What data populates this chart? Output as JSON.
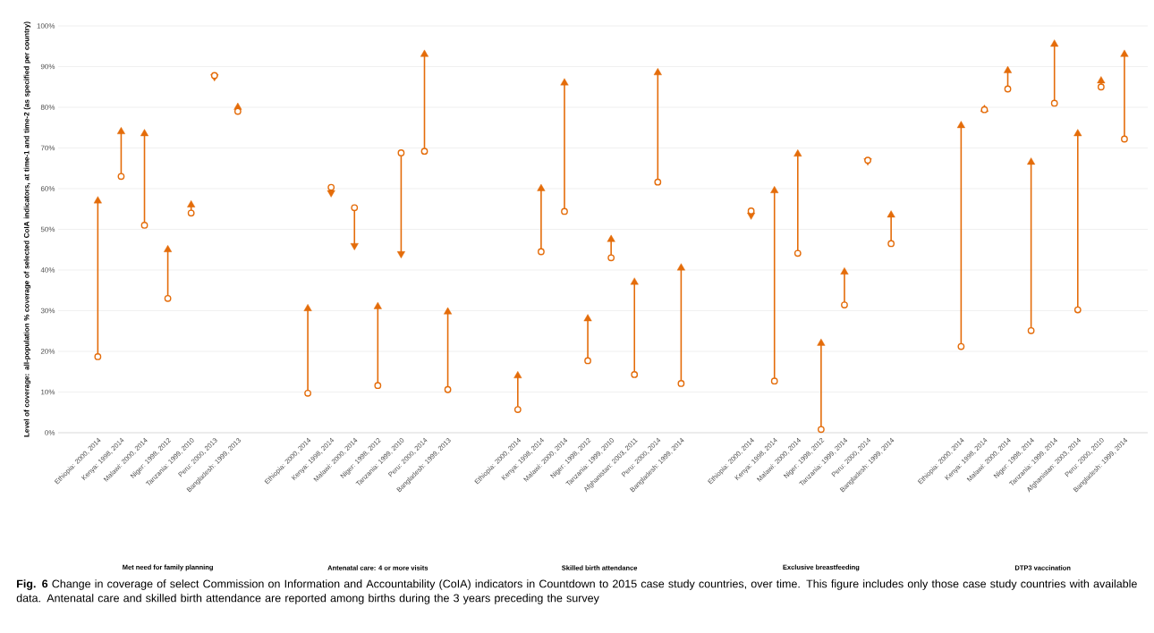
{
  "chart_data": {
    "type": "scatter",
    "ylabel": "Level of coverage: all-population % coverage of selected CoIA indicators, at time-1 and time-2 (as specified per country)",
    "categories": [
      "Ethiopia: 2000, 2014",
      "Kenya: 1998, 2014",
      "Malawi: 2000, 2014",
      "Niger: 1998, 2012",
      "Tanzania: 1999, 2010",
      "Peru: 2000, 2013",
      "Bangladesh: 1999, 2013",
      null,
      null,
      "Ethiopia: 2000, 2014",
      "Kenya: 1998, 2014",
      "Malawi: 2000, 2014",
      "Niger: 1998, 2012",
      "Tanzania: 1999, 2010",
      "Peru: 2000, 2014",
      "Bangladesh: 1999, 2013",
      null,
      null,
      "Ethiopia: 2000, 2014",
      "Kenya: 1998, 2014",
      "Malawi: 2000, 2014",
      "Niger: 1998, 2012",
      "Tanzania: 1999, 2010",
      "Afghanistan: 2003, 2011",
      "Peru: 2000, 2014",
      "Bangladesh: 1999, 2014",
      null,
      null,
      "Ethiopia: 2000, 2014",
      "Kenya: 1998, 2014",
      "Malawi: 2000, 2014",
      "Niger: 1998, 2012",
      "Tanzania: 1999, 2014",
      "Peru: 2000, 2014",
      "Bangladesh: 1999, 2014",
      null,
      null,
      "Ethiopia: 2000, 2014",
      "Kenya: 1998, 2014",
      "Malawi: 2000, 2014",
      "Niger: 1998, 2014",
      "Tanzania: 1999, 2014",
      "Afghanistan: 2003, 2014",
      "Peru: 2000, 2010",
      "Bangladesh: 1999, 2014"
    ],
    "series": [
      {
        "color": "#e46c0a",
        "marker": "circle",
        "values": [
          18.7,
          63,
          51,
          33,
          54,
          87.8,
          79,
          null,
          null,
          9.7,
          60.3,
          55.3,
          11.6,
          68.8,
          69.2,
          10.6,
          null,
          null,
          5.7,
          44.5,
          54.4,
          17.7,
          43,
          14.3,
          61.6,
          12.1,
          null,
          null,
          54.5,
          12.7,
          44.1,
          0.8,
          31.4,
          67,
          46.5,
          null,
          null,
          21.2,
          79.4,
          84.5,
          25.1,
          81,
          30.2,
          85,
          72.2
        ]
      },
      {
        "color": "#e46c0a",
        "marker": "triangle",
        "values": [
          57,
          74,
          73.5,
          45,
          56,
          87.5,
          80,
          null,
          null,
          30.5,
          59,
          46,
          31,
          44,
          93,
          29.7,
          null,
          null,
          14,
          60,
          86,
          28,
          47.5,
          37,
          88.5,
          40.5,
          null,
          null,
          53.5,
          59.5,
          68.5,
          22,
          39.5,
          66.8,
          53.5,
          null,
          null,
          75.5,
          79.5,
          89,
          66.5,
          95.5,
          73.5,
          86.5,
          93
        ]
      }
    ],
    "ylim": [
      0,
      100
    ],
    "yticks": [
      {
        "value": 0,
        "label": "0%"
      },
      {
        "value": 10,
        "label": "10%"
      },
      {
        "value": 20,
        "label": "20%"
      },
      {
        "value": 30,
        "label": "30%"
      },
      {
        "value": 40,
        "label": "40%"
      },
      {
        "value": 50,
        "label": "50%"
      },
      {
        "value": 60,
        "label": "60%"
      },
      {
        "value": 70,
        "label": "70%"
      },
      {
        "value": 80,
        "label": "80%"
      },
      {
        "value": 90,
        "label": "90%"
      },
      {
        "value": 100,
        "label": "100%"
      }
    ],
    "grid": "y",
    "annotations": [
      "Met need for family planning",
      "Antenatal care: 4 or more visits",
      "Skilled birth attendance",
      "Exclusive breastfeeding",
      "DTP3 vaccination",
      "**Fig. 6** Change in coverage of select Commission on Information and Accountability (CoIA) indicators in Countdown to 2015 case study countries, over time. This figure includes only those case study countries with available data. Antenatal care and skilled birth attendance are reported among births during the 3 years preceding the survey"
    ]
  }
}
